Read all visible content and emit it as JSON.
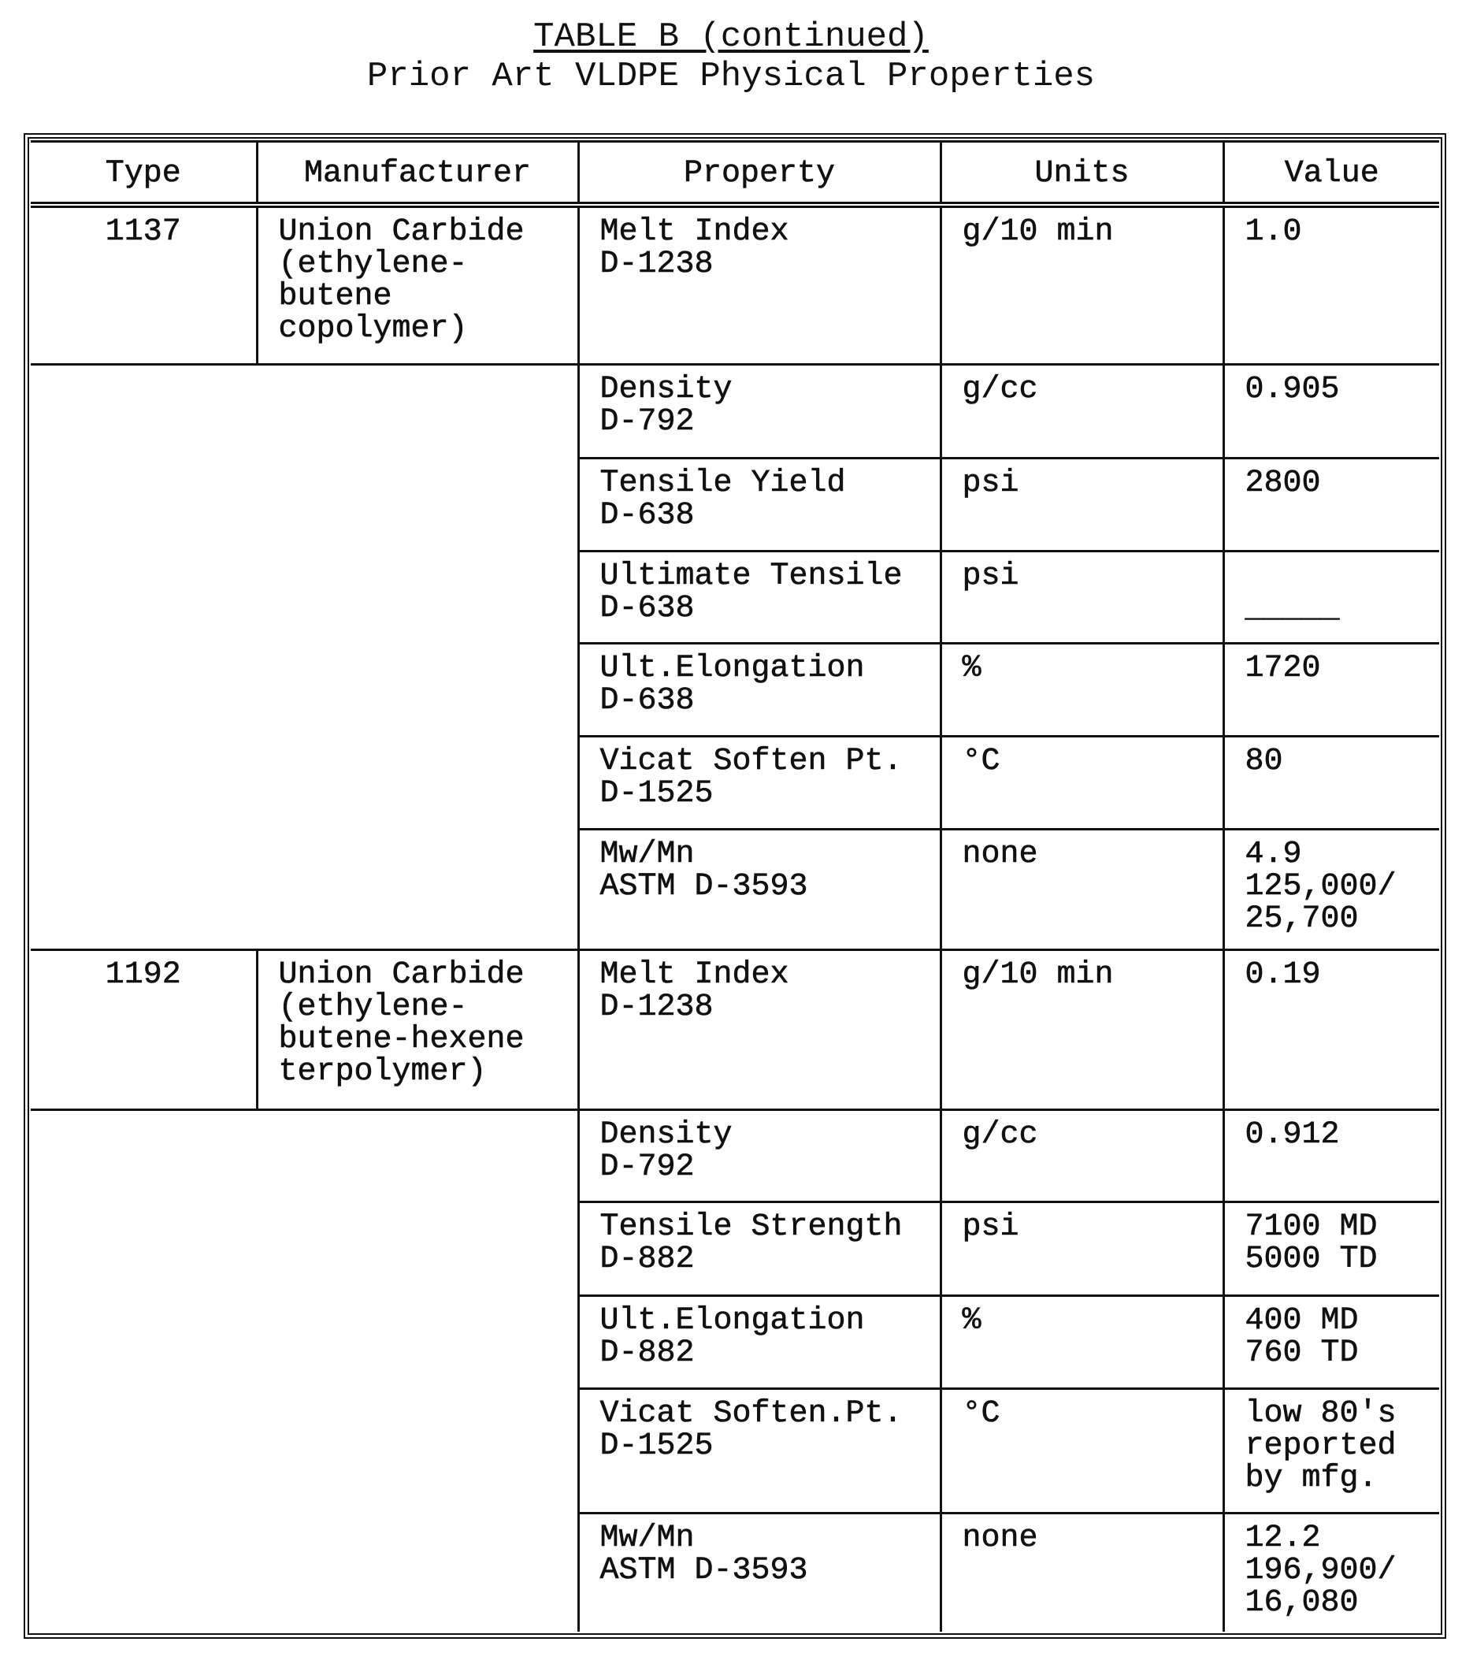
{
  "header": {
    "title": "TABLE B (continued)",
    "subtitle": "Prior Art VLDPE Physical Properties"
  },
  "table": {
    "columns": [
      "Type",
      "Manufacturer",
      "Property",
      "Units",
      "Value"
    ],
    "groups": [
      {
        "type": "1137",
        "manufacturer": "Union Carbide\n(ethylene-\nbutene\ncopolymer)",
        "rows": [
          {
            "property": "Melt Index\nD-1238",
            "units": "g/10 min",
            "value": "1.0"
          },
          {
            "property": "Density\nD-792",
            "units": "g/cc",
            "value": "0.905"
          },
          {
            "property": "Tensile Yield\nD-638",
            "units": "psi",
            "value": "2800"
          },
          {
            "property": "Ultimate Tensile\nD-638",
            "units": "psi",
            "value": "\n_____"
          },
          {
            "property": "Ult.Elongation\nD-638",
            "units": "%",
            "value": "1720"
          },
          {
            "property": "Vicat Soften Pt.\nD-1525",
            "units": "°C",
            "value": "80"
          },
          {
            "property": "Mw/Mn\nASTM D-3593",
            "units": "none",
            "value": "4.9\n125,000/\n25,700"
          }
        ]
      },
      {
        "type": "1192",
        "manufacturer": "Union Carbide\n(ethylene-\nbutene-hexene\nterpolymer)",
        "rows": [
          {
            "property": "Melt Index\nD-1238",
            "units": "g/10 min",
            "value": "0.19"
          },
          {
            "property": "Density\nD-792",
            "units": "g/cc",
            "value": "0.912"
          },
          {
            "property": "Tensile Strength\nD-882",
            "units": "psi",
            "value": "7100 MD\n5000 TD"
          },
          {
            "property": "Ult.Elongation\nD-882",
            "units": "%",
            "value": "400 MD\n760 TD"
          },
          {
            "property": "Vicat Soften.Pt.\nD-1525",
            "units": "°C",
            "value": "low 80's\nreported\nby mfg."
          },
          {
            "property": "Mw/Mn\nASTM D-3593",
            "units": "none",
            "value": "12.2\n196,900/\n16,080"
          }
        ]
      }
    ]
  }
}
